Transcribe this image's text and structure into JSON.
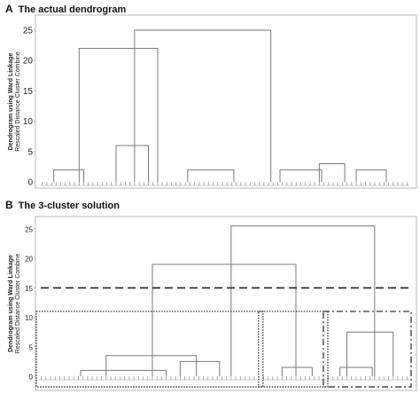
{
  "panels": {
    "a": {
      "letter": "A",
      "title": "The actual dendrogram"
    },
    "b": {
      "letter": "B",
      "title": "The 3-cluster solution"
    }
  },
  "colors": {
    "frame": "#b9b9b9",
    "tree": "#7a7a7a",
    "text": "#222222",
    "cut": "#222222",
    "leaf": "#9a9a9a"
  },
  "chart_data": [
    {
      "type": "dendrogram",
      "title": "The actual dendrogram",
      "ylabel": "Dendrogram using Ward Linkage",
      "ylabel2": "Rescaled Distance Cluster Combine",
      "ylim": [
        0,
        25
      ],
      "yticks": [
        0,
        5,
        10,
        15,
        20,
        25
      ],
      "leaf_count": 80,
      "merges": [
        {
          "left": [
            1,
            6
          ],
          "right": [
            7,
            13
          ],
          "height": 2
        },
        {
          "left": [
            14,
            20
          ],
          "right": [
            21,
            27
          ],
          "height": 6
        },
        {
          "left": [
            28,
            37
          ],
          "right": [
            38,
            47
          ],
          "height": 2
        },
        {
          "left": [
            49,
            56
          ],
          "right": [
            57,
            66
          ],
          "height": 2
        },
        {
          "left": [
            67,
            71
          ],
          "right": [
            72,
            79
          ],
          "height": 2
        },
        {
          "left": [
            60,
            62
          ],
          "right": [
            63,
            70
          ],
          "height": 3
        },
        {
          "left": [
            8,
            10
          ],
          "right": [
            25,
            27
          ],
          "height": 22
        },
        {
          "left": [
            18,
            24
          ],
          "right": [
            43,
            58
          ],
          "height": 25
        }
      ]
    },
    {
      "type": "dendrogram",
      "title": "The 3-cluster solution",
      "ylabel": "Dendrogram using Ward Linkage",
      "ylabel2": "Rescaled Distance Cluster Combine",
      "ylim": [
        0,
        25
      ],
      "yticks": [
        0,
        5,
        10,
        15,
        20,
        25
      ],
      "leaf_count": 80,
      "cut_height": 15,
      "merges": [
        {
          "left": [
            1,
            18
          ],
          "right": [
            20,
            36
          ],
          "height": 1
        },
        {
          "left": [
            26,
            36
          ],
          "right": [
            37,
            42
          ],
          "height": 2.5
        },
        {
          "left": [
            10,
            20
          ],
          "right": [
            30,
            39
          ],
          "height": 3.5
        },
        {
          "left": [
            50,
            56
          ],
          "right": [
            57,
            62
          ],
          "height": 1.5
        },
        {
          "left": [
            63,
            68
          ],
          "right": [
            69,
            76
          ],
          "height": 1.5
        },
        {
          "left": [
            66,
            68
          ],
          "right": [
            76,
            78
          ],
          "height": 7.5
        },
        {
          "left": [
            20,
            30
          ],
          "right": [
            53,
            59
          ],
          "height": 19
        },
        {
          "left": [
            36,
            48
          ],
          "right": [
            72,
            74
          ],
          "height": 25.5
        }
      ],
      "clusters": [
        {
          "from": 1,
          "to": 48,
          "style": "dotted"
        },
        {
          "from": 49,
          "to": 62,
          "style": "dotted"
        },
        {
          "from": 63,
          "to": 80,
          "style": "dashdot"
        }
      ]
    }
  ]
}
